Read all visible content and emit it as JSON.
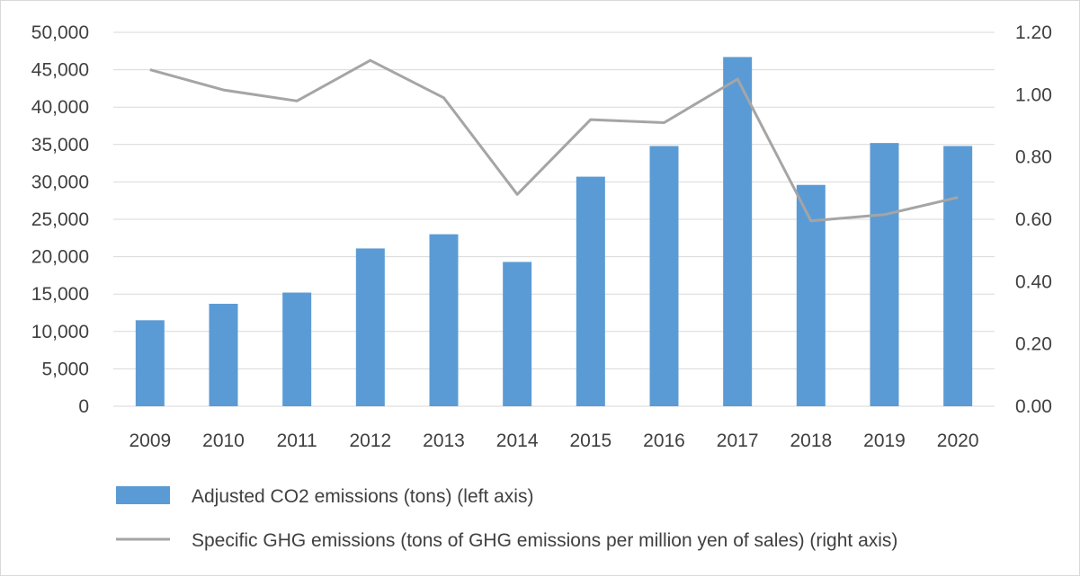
{
  "chart_data": {
    "type": "bar+line",
    "categories": [
      "2009",
      "2010",
      "2011",
      "2012",
      "2013",
      "2014",
      "2015",
      "2016",
      "2017",
      "2018",
      "2019",
      "2020"
    ],
    "series": [
      {
        "name": "Adjusted CO2 emissions (tons) (left axis)",
        "type": "bar",
        "axis": "left",
        "color": "#5b9bd5",
        "values": [
          11500,
          13700,
          15200,
          21100,
          23000,
          19300,
          30700,
          34800,
          46700,
          29600,
          35200,
          34800
        ]
      },
      {
        "name": "Specific GHG emissions (tons of GHG emissions per million yen of sales) (right axis)",
        "type": "line",
        "axis": "right",
        "color": "#a5a5a5",
        "values": [
          1.08,
          1.015,
          0.98,
          1.11,
          0.99,
          0.68,
          0.92,
          0.91,
          1.05,
          0.595,
          0.615,
          0.67
        ]
      }
    ],
    "left_axis": {
      "ylim": [
        0,
        50000
      ],
      "ticks": [
        "0",
        "5,000",
        "10,000",
        "15,000",
        "20,000",
        "25,000",
        "30,000",
        "35,000",
        "40,000",
        "45,000",
        "50,000"
      ]
    },
    "right_axis": {
      "ylim": [
        0,
        1.2
      ],
      "ticks": [
        "0.00",
        "0.20",
        "0.40",
        "0.60",
        "0.80",
        "1.00",
        "1.20"
      ]
    },
    "grid": true,
    "legend_position": "bottom"
  }
}
